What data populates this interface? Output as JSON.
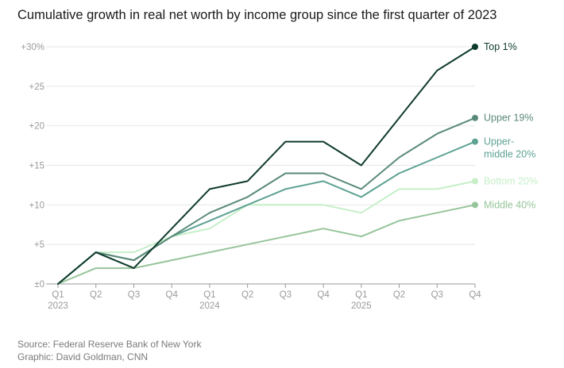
{
  "title": "Cumulative growth in real net worth by income group since the first quarter of 2023",
  "source": "Source: Federal Reserve Bank of New York",
  "credit": "Graphic: David Goldman, CNN",
  "chart_data": {
    "type": "line",
    "x": [
      "Q1",
      "Q2",
      "Q3",
      "Q4",
      "Q1",
      "Q2",
      "Q3",
      "Q4",
      "Q1",
      "Q2",
      "Q3",
      "Q4"
    ],
    "year_labels": [
      {
        "index": 0,
        "label": "2023"
      },
      {
        "index": 4,
        "label": "2024"
      },
      {
        "index": 8,
        "label": "2025"
      }
    ],
    "y_ticks": [
      {
        "value": 0,
        "label": "±0"
      },
      {
        "value": 5,
        "label": "+5"
      },
      {
        "value": 10,
        "label": "+10"
      },
      {
        "value": 15,
        "label": "+15"
      },
      {
        "value": 20,
        "label": "+20"
      },
      {
        "value": 25,
        "label": "+25"
      },
      {
        "value": 30,
        "label": "+30%"
      }
    ],
    "ylim": [
      0,
      30
    ],
    "grid": true,
    "legend": "direct labels at line ends",
    "series": [
      {
        "name": "Middle 40%",
        "label_lines": [
          "Middle 40%"
        ],
        "color": "#96c49a",
        "values": [
          0,
          2,
          2,
          3,
          4,
          5,
          6,
          7,
          6,
          8,
          9,
          10
        ]
      },
      {
        "name": "Bottom 20%",
        "label_lines": [
          "Bottom 20%"
        ],
        "color": "#c6efc8",
        "values": [
          0,
          4,
          4,
          6,
          7,
          10,
          10,
          10,
          9,
          12,
          12,
          13
        ]
      },
      {
        "name": "Upper-middle 20%",
        "label_lines": [
          "Upper-",
          "middle 20%"
        ],
        "color": "#5ea293",
        "values": [
          0,
          4,
          3,
          6,
          8,
          10,
          12,
          13,
          11,
          14,
          16,
          18
        ]
      },
      {
        "name": "Upper 19%",
        "label_lines": [
          "Upper 19%"
        ],
        "color": "#5a8a78",
        "values": [
          0,
          4,
          3,
          6,
          9,
          11,
          14,
          14,
          12,
          16,
          19,
          21
        ]
      },
      {
        "name": "Top 1%",
        "label_lines": [
          "Top 1%"
        ],
        "color": "#0f3b2c",
        "values": [
          0,
          4,
          2,
          7,
          12,
          13,
          18,
          18,
          15,
          21,
          27,
          30
        ]
      }
    ]
  }
}
